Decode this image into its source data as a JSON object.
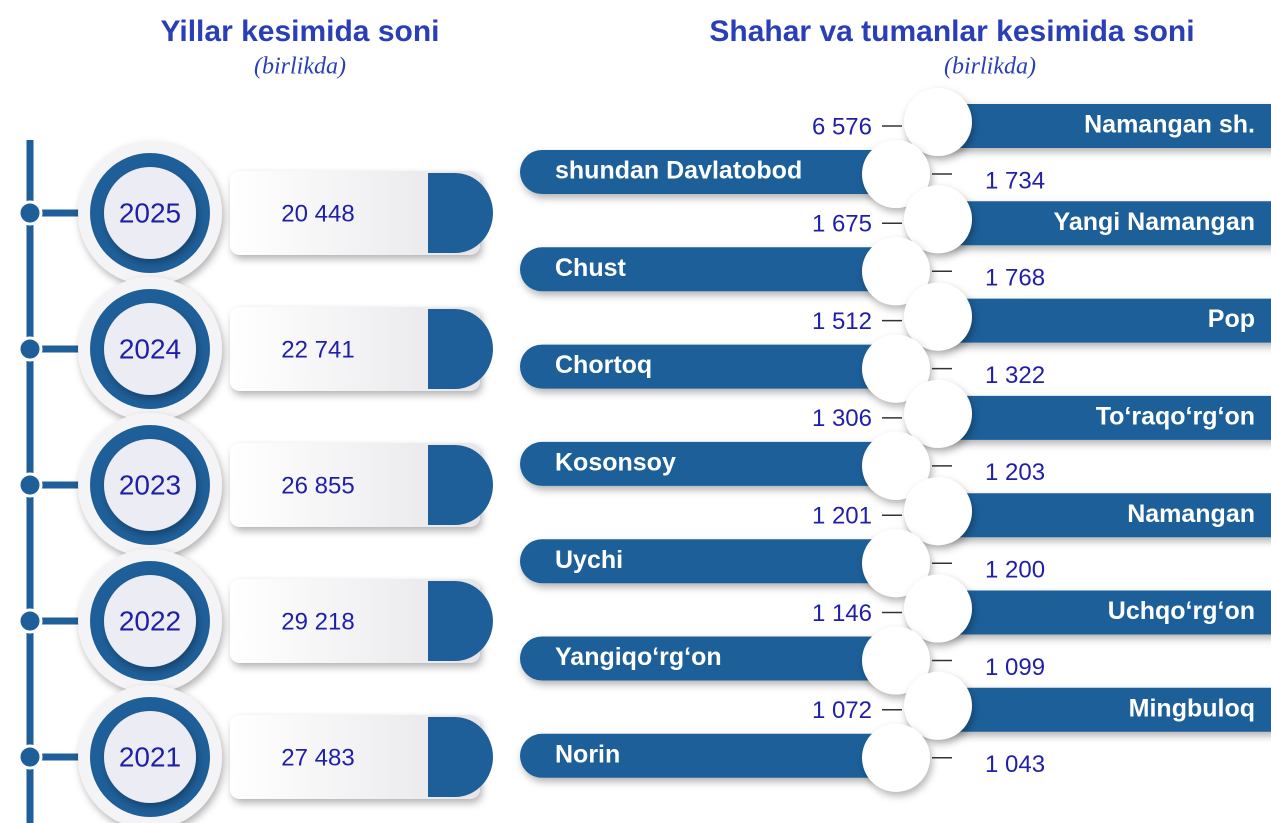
{
  "left": {
    "title": "Yillar kesimida soni",
    "subtitle": "(birlikda)",
    "items": [
      {
        "year": "2025",
        "value": "20 448"
      },
      {
        "year": "2024",
        "value": "22 741"
      },
      {
        "year": "2023",
        "value": "26 855"
      },
      {
        "year": "2022",
        "value": "29 218"
      },
      {
        "year": "2021",
        "value": "27 483"
      }
    ]
  },
  "right": {
    "title": "Shahar va tumanlar kesimida soni",
    "subtitle": "(birlikda)",
    "items": [
      {
        "name": "Namangan sh.",
        "value": "6 576"
      },
      {
        "name": "shundan Davlatobod",
        "value": "1 734"
      },
      {
        "name": "Yangi Namangan",
        "value": "1 675"
      },
      {
        "name": "Chust",
        "value": "1 768"
      },
      {
        "name": "Pop",
        "value": "1 512"
      },
      {
        "name": "Chortoq",
        "value": "1 322"
      },
      {
        "name": "To‘raqo‘rg‘on",
        "value": "1 306"
      },
      {
        "name": "Kosonsoy",
        "value": "1 203"
      },
      {
        "name": "Namangan",
        "value": "1 201"
      },
      {
        "name": "Uychi",
        "value": "1 200"
      },
      {
        "name": "Uchqo‘rg‘on",
        "value": "1 146"
      },
      {
        "name": "Yangiqo‘rg‘on",
        "value": "1 099"
      },
      {
        "name": "Mingbuloq",
        "value": "1 072"
      },
      {
        "name": "Norin",
        "value": "1 043"
      }
    ]
  }
}
